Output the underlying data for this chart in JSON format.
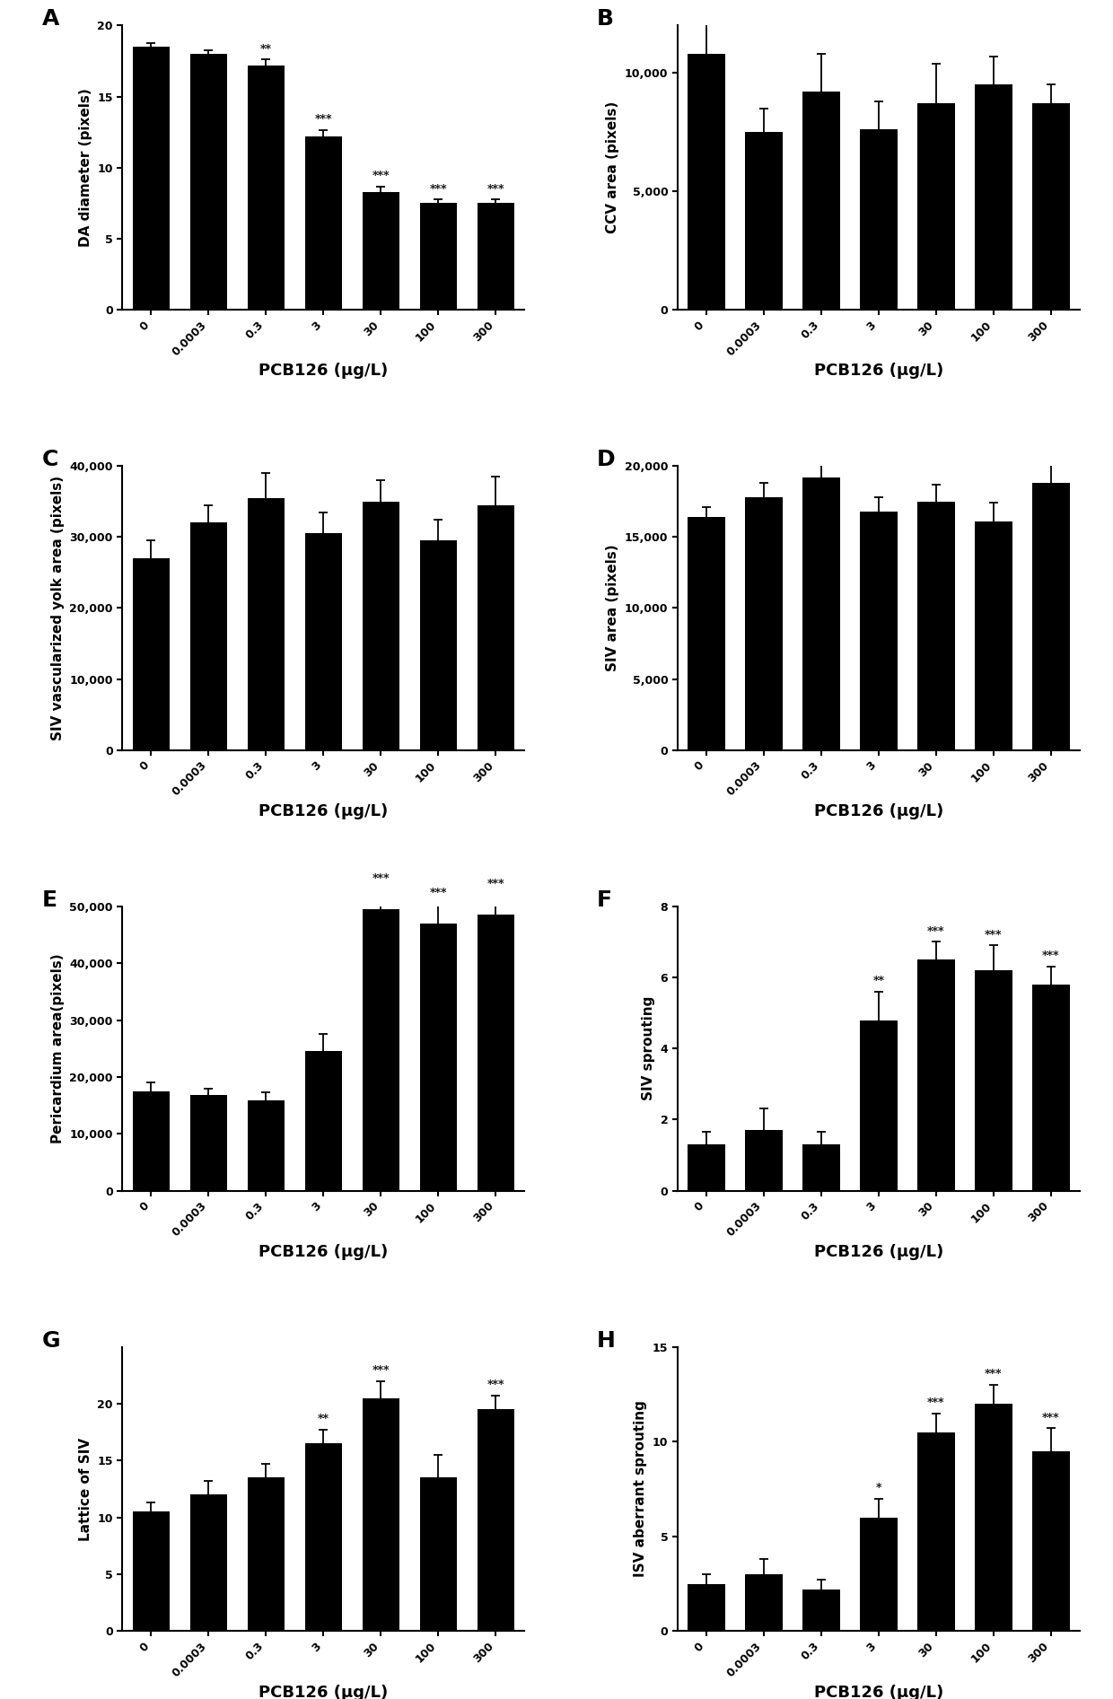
{
  "categories": [
    "0",
    "0.0003",
    "0.3",
    "3",
    "30",
    "100",
    "300"
  ],
  "panels": {
    "A": {
      "label": "A",
      "ylabel": "DA diameter (pixels)",
      "values": [
        18.5,
        18.0,
        17.2,
        12.2,
        8.3,
        7.5,
        7.5
      ],
      "errors": [
        0.25,
        0.25,
        0.4,
        0.45,
        0.35,
        0.25,
        0.25
      ],
      "sig": [
        "",
        "",
        "**",
        "***",
        "***",
        "***",
        "***"
      ],
      "ylim": [
        0,
        20
      ],
      "yticks": [
        0,
        5,
        10,
        15,
        20
      ]
    },
    "B": {
      "label": "B",
      "ylabel": "CCV area (pixels)",
      "values": [
        10800,
        7500,
        9200,
        7600,
        8700,
        9500,
        8700
      ],
      "errors": [
        1300,
        1000,
        1600,
        1200,
        1700,
        1200,
        800
      ],
      "sig": [
        "",
        "",
        "",
        "",
        "",
        "",
        ""
      ],
      "ylim": [
        0,
        12000
      ],
      "yticks": [
        0,
        5000,
        10000
      ]
    },
    "C": {
      "label": "C",
      "ylabel": "SIV vascularized yolk area (pixels)",
      "values": [
        27000,
        32000,
        35500,
        30500,
        35000,
        29500,
        34500
      ],
      "errors": [
        2500,
        2500,
        3500,
        3000,
        3000,
        3000,
        4000
      ],
      "sig": [
        "",
        "",
        "",
        "",
        "",
        "",
        ""
      ],
      "ylim": [
        0,
        40000
      ],
      "yticks": [
        0,
        10000,
        20000,
        30000,
        40000
      ]
    },
    "D": {
      "label": "D",
      "ylabel": "SIV area (pixels)",
      "values": [
        16400,
        17800,
        19200,
        16800,
        17500,
        16100,
        18800
      ],
      "errors": [
        700,
        1000,
        1200,
        1000,
        1200,
        1300,
        1500
      ],
      "sig": [
        "",
        "",
        "",
        "",
        "",
        "",
        ""
      ],
      "ylim": [
        0,
        20000
      ],
      "yticks": [
        0,
        5000,
        10000,
        15000,
        20000
      ]
    },
    "E": {
      "label": "E",
      "ylabel": "Pericardium area(pixels)",
      "values": [
        17500,
        16800,
        15800,
        24500,
        49500,
        47000,
        48500
      ],
      "errors": [
        1500,
        1200,
        1500,
        3000,
        3500,
        3500,
        3500
      ],
      "sig": [
        "",
        "",
        "",
        "",
        "***",
        "***",
        "***"
      ],
      "ylim": [
        0,
        50000
      ],
      "yticks": [
        0,
        10000,
        20000,
        30000,
        40000,
        50000
      ]
    },
    "F": {
      "label": "F",
      "ylabel": "SIV sprouting",
      "values": [
        1.3,
        1.7,
        1.3,
        4.8,
        6.5,
        6.2,
        5.8
      ],
      "errors": [
        0.35,
        0.6,
        0.35,
        0.8,
        0.5,
        0.7,
        0.5
      ],
      "sig": [
        "",
        "",
        "",
        "**",
        "***",
        "***",
        "***"
      ],
      "ylim": [
        0,
        8
      ],
      "yticks": [
        0,
        2,
        4,
        6,
        8
      ]
    },
    "G": {
      "label": "G",
      "ylabel": "Lattice of SIV",
      "values": [
        10.5,
        12.0,
        13.5,
        16.5,
        20.5,
        13.5,
        19.5
      ],
      "errors": [
        0.8,
        1.2,
        1.2,
        1.2,
        1.5,
        2.0,
        1.2
      ],
      "sig": [
        "",
        "",
        "",
        "**",
        "***",
        "",
        "***"
      ],
      "ylim": [
        0,
        25
      ],
      "yticks": [
        0,
        5,
        10,
        15,
        20
      ]
    },
    "H": {
      "label": "H",
      "ylabel": "ISV aberrant sprouting",
      "values": [
        2.5,
        3.0,
        2.2,
        6.0,
        10.5,
        12.0,
        9.5
      ],
      "errors": [
        0.5,
        0.8,
        0.5,
        1.0,
        1.0,
        1.0,
        1.2
      ],
      "sig": [
        "",
        "",
        "",
        "*",
        "***",
        "***",
        "***"
      ],
      "ylim": [
        0,
        15
      ],
      "yticks": [
        0,
        5,
        10,
        15
      ]
    }
  },
  "xlabel": "PCB126 (μg/L)",
  "bar_color": "#000000",
  "sig_fontsize": 9,
  "label_fontsize": 11,
  "tick_fontsize": 9,
  "panel_label_fontsize": 18,
  "xlabel_fontsize": 13
}
